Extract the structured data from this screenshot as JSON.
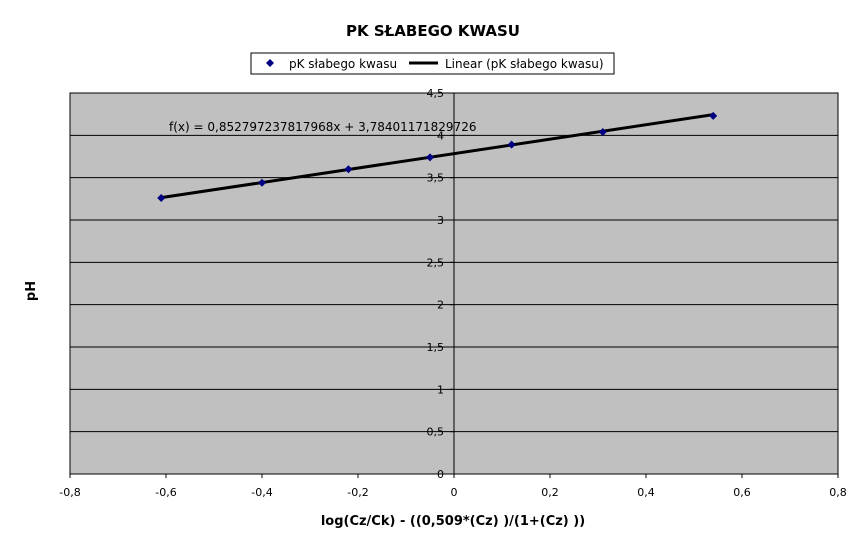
{
  "chart_data": {
    "type": "scatter",
    "title": "PK SŁABEGO KWASU",
    "xlabel": "log(Cz/Ck) - ((0,509*(Cz) )/(1+(Cz) ))",
    "ylabel": "pH",
    "xlim": [
      -0.8,
      0.8
    ],
    "ylim": [
      0,
      4.5
    ],
    "x_ticks": [
      "-0,8",
      "-0,6",
      "-0,4",
      "-0,2",
      "0",
      "0,2",
      "0,4",
      "0,6",
      "0,8"
    ],
    "y_ticks": [
      "0",
      "0,5",
      "1",
      "1,5",
      "2",
      "2,5",
      "3",
      "3,5",
      "4",
      "4,5"
    ],
    "grid": true,
    "legend_position": "top-center",
    "series": [
      {
        "name": "pK słabego kwasu",
        "color": "#000080",
        "marker": "diamond",
        "x": [
          -0.61,
          -0.4,
          -0.22,
          -0.05,
          0.12,
          0.31,
          0.54
        ],
        "y": [
          3.26,
          3.44,
          3.6,
          3.74,
          3.89,
          4.04,
          4.23
        ]
      }
    ],
    "trendline": {
      "name": "Linear (pK słabego kwasu)",
      "color": "#000000",
      "slope": 0.852797237817968,
      "intercept": 3.78401171829726,
      "x_range": [
        -0.61,
        0.54
      ],
      "equation_label": "f(x) = 0,852797237817968x + 3,78401171829726"
    },
    "plot_background": "#c0c0c0"
  }
}
